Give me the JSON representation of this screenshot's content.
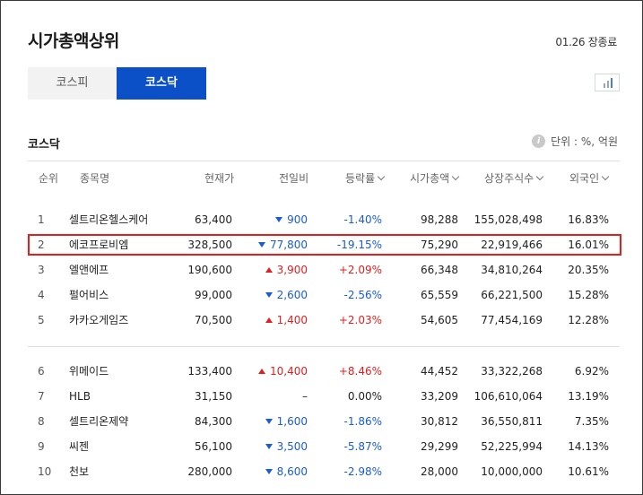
{
  "header": {
    "title": "시가총액상위",
    "date": "01.26 장종료"
  },
  "tabs": [
    {
      "label": "코스피",
      "active": false
    },
    {
      "label": "코스닥",
      "active": true
    }
  ],
  "market_label": "코스닥",
  "unit": {
    "icon": "info-icon",
    "text": "단위 : %, 억원"
  },
  "columns": [
    "순위",
    "종목명",
    "현재가",
    "전일비",
    "등락률",
    "시가총액",
    "상장주식수",
    "외국인"
  ],
  "sortable_columns": [
    "등락률",
    "시가총액",
    "상장주식수",
    "외국인"
  ],
  "group1": [
    {
      "rank": "1",
      "name": "셀트리온헬스케어",
      "price": "63,400",
      "diff": "900",
      "dir": "down",
      "rate": "-1.40%",
      "cap": "98,288",
      "shares": "155,028,498",
      "foreign": "16.83%"
    },
    {
      "rank": "2",
      "name": "에코프로비엠",
      "price": "328,500",
      "diff": "77,800",
      "dir": "down",
      "rate": "-19.15%",
      "cap": "75,290",
      "shares": "22,919,466",
      "foreign": "16.01%"
    },
    {
      "rank": "3",
      "name": "엘앤에프",
      "price": "190,600",
      "diff": "3,900",
      "dir": "up",
      "rate": "+2.09%",
      "cap": "66,348",
      "shares": "34,810,264",
      "foreign": "20.35%"
    },
    {
      "rank": "4",
      "name": "펄어비스",
      "price": "99,000",
      "diff": "2,600",
      "dir": "down",
      "rate": "-2.56%",
      "cap": "65,559",
      "shares": "66,221,500",
      "foreign": "15.28%"
    },
    {
      "rank": "5",
      "name": "카카오게임즈",
      "price": "70,500",
      "diff": "1,400",
      "dir": "up",
      "rate": "+2.03%",
      "cap": "54,605",
      "shares": "77,454,169",
      "foreign": "12.28%"
    }
  ],
  "group2": [
    {
      "rank": "6",
      "name": "위메이드",
      "price": "133,400",
      "diff": "10,400",
      "dir": "up",
      "rate": "+8.46%",
      "cap": "44,452",
      "shares": "33,322,268",
      "foreign": "6.92%"
    },
    {
      "rank": "7",
      "name": "HLB",
      "price": "31,150",
      "diff": "–",
      "dir": "flat",
      "rate": "0.00%",
      "cap": "33,209",
      "shares": "106,610,064",
      "foreign": "13.19%"
    },
    {
      "rank": "8",
      "name": "셀트리온제약",
      "price": "84,300",
      "diff": "1,600",
      "dir": "down",
      "rate": "-1.86%",
      "cap": "30,812",
      "shares": "36,550,811",
      "foreign": "7.35%"
    },
    {
      "rank": "9",
      "name": "씨젠",
      "price": "56,100",
      "diff": "3,500",
      "dir": "down",
      "rate": "-5.87%",
      "cap": "29,299",
      "shares": "52,225,994",
      "foreign": "14.13%"
    },
    {
      "rank": "10",
      "name": "천보",
      "price": "280,000",
      "diff": "8,600",
      "dir": "down",
      "rate": "-2.98%",
      "cap": "28,000",
      "shares": "10,000,000",
      "foreign": "10.61%"
    }
  ],
  "highlighted_rank": "2",
  "colors": {
    "accent": "#0c50c8",
    "down": "#1a5bd6",
    "up": "#e02020",
    "highlight": "#e41d1d"
  }
}
